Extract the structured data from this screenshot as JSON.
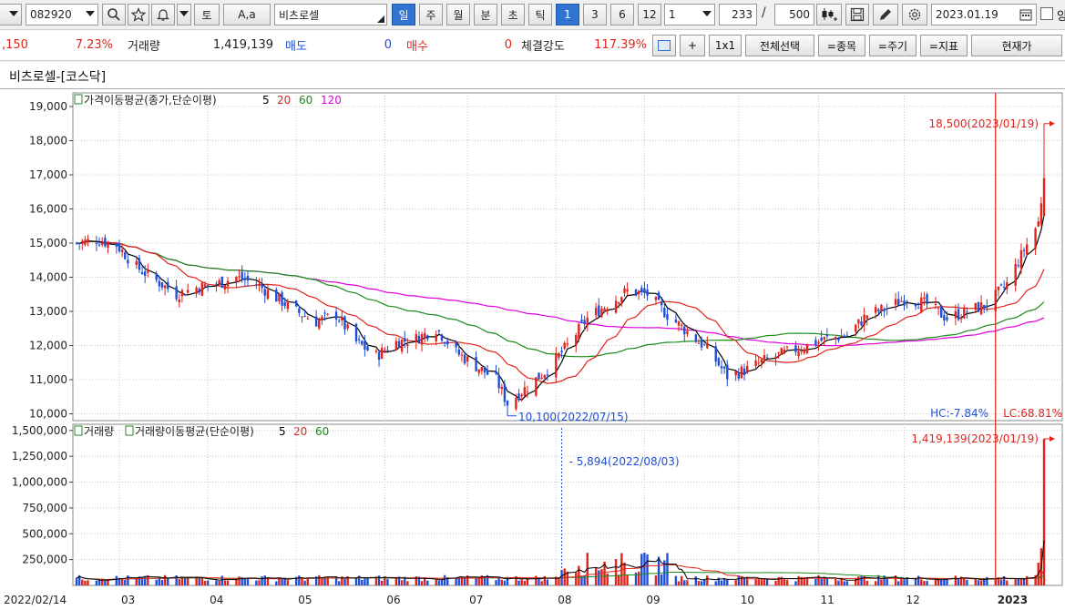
{
  "toolbar": {
    "code": "082920",
    "tb_label": "토",
    "font_btn": "A,a",
    "stock_name": "비츠로셀",
    "periods": [
      "일",
      "주",
      "월",
      "분",
      "초",
      "틱"
    ],
    "active_period": "일",
    "numbers": [
      "1",
      "3",
      "6",
      "12"
    ],
    "unit_value": "1",
    "count_value": "233",
    "slash": "/",
    "max_value": "500",
    "date_value": "2023.01.19",
    "checkbox_label": "앙"
  },
  "inforow": {
    "change_amount": ",150",
    "change_pct": "7.23%",
    "volume_label": "거래량",
    "volume_value": "1,419,139",
    "sell_label": "매도",
    "sell_value": "0",
    "buy_label": "매수",
    "buy_value": "0",
    "strength_label": "체결강도",
    "strength_value": "117.39%",
    "plus": "+",
    "one_by_one": "1x1",
    "select_all": "전체선택",
    "item_btn": "=종목",
    "period_btn": "=주기",
    "indicator_btn": "=지표",
    "current_btn": "현재가"
  },
  "chart_title": "비츠로셀-[코스닥]",
  "colors": {
    "up": "#e0231b",
    "down": "#1f4fd8",
    "ma5": "#000000",
    "ma20": "#e0231b",
    "ma60": "#1a8a1a",
    "ma120": "#e000e0",
    "accent": "#2f74d0"
  },
  "chart_data": [
    {
      "type": "candlestick",
      "legend": "가격이동평균(종가,단순이평)",
      "legend_periods": [
        "5",
        "20",
        "60",
        "120"
      ],
      "y_ticks": [
        "19,000",
        "18,000",
        "17,000",
        "16,000",
        "15,000",
        "14,000",
        "13,000",
        "12,000",
        "11,000",
        "10,000"
      ],
      "ylim": [
        9800,
        19400
      ],
      "x_ticks": [
        "2022/02/14",
        "03",
        "04",
        "05",
        "06",
        "07",
        "08",
        "09",
        "10",
        "11",
        "12",
        "2023"
      ],
      "close_path": [
        [
          "2022-02-14",
          15000
        ],
        [
          "2022-02-21",
          15100
        ],
        [
          "2022-02-28",
          14950
        ],
        [
          "2022-03-07",
          14300
        ],
        [
          "2022-03-14",
          13900
        ],
        [
          "2022-03-21",
          13500
        ],
        [
          "2022-03-28",
          13700
        ],
        [
          "2022-04-04",
          13800
        ],
        [
          "2022-04-11",
          14000
        ],
        [
          "2022-04-18",
          13800
        ],
        [
          "2022-04-25",
          13400
        ],
        [
          "2022-05-02",
          13000
        ],
        [
          "2022-05-09",
          12700
        ],
        [
          "2022-05-16",
          12900
        ],
        [
          "2022-05-23",
          12100
        ],
        [
          "2022-05-30",
          11700
        ],
        [
          "2022-06-06",
          12100
        ],
        [
          "2022-06-13",
          12200
        ],
        [
          "2022-06-20",
          12500
        ],
        [
          "2022-06-27",
          11800
        ],
        [
          "2022-07-04",
          11400
        ],
        [
          "2022-07-11",
          11000
        ],
        [
          "2022-07-15",
          10300
        ],
        [
          "2022-07-22",
          10800
        ],
        [
          "2022-07-29",
          11300
        ],
        [
          "2022-08-05",
          12000
        ],
        [
          "2022-08-12",
          12800
        ],
        [
          "2022-08-19",
          13200
        ],
        [
          "2022-08-26",
          13600
        ],
        [
          "2022-09-02",
          13500
        ],
        [
          "2022-09-09",
          12900
        ],
        [
          "2022-09-16",
          12400
        ],
        [
          "2022-09-23",
          11900
        ],
        [
          "2022-09-30",
          11100
        ],
        [
          "2022-10-07",
          11300
        ],
        [
          "2022-10-14",
          11600
        ],
        [
          "2022-10-21",
          11800
        ],
        [
          "2022-10-28",
          12000
        ],
        [
          "2022-11-04",
          12200
        ],
        [
          "2022-11-11",
          12300
        ],
        [
          "2022-11-18",
          12900
        ],
        [
          "2022-11-25",
          13100
        ],
        [
          "2022-12-02",
          13400
        ],
        [
          "2022-12-09",
          13200
        ],
        [
          "2022-12-16",
          12800
        ],
        [
          "2022-12-23",
          13000
        ],
        [
          "2022-12-30",
          13200
        ],
        [
          "2023-01-06",
          13800
        ],
        [
          "2023-01-12",
          14800
        ],
        [
          "2023-01-17",
          15600
        ],
        [
          "2023-01-19",
          16900
        ]
      ],
      "annotations": {
        "high": "18,500(2023/01/19)",
        "low": "10,100(2022/07/15)",
        "hc": "HC:-7.84%",
        "lc": "LC:68.81%"
      }
    },
    {
      "type": "bar",
      "legend_prefix": "거래량",
      "legend": "거래량이동평균(단순이평)",
      "legend_periods": [
        "5",
        "20",
        "60"
      ],
      "y_ticks": [
        "1,500,000",
        "1,250,000",
        "1,000,000",
        "750,000",
        "500,000",
        "250,000"
      ],
      "ylim": [
        0,
        1560000
      ],
      "annotations": {
        "high": "1,419,139(2023/01/19)",
        "marker": "5,894(2022/08/03)"
      },
      "last_value": 1419139
    }
  ]
}
